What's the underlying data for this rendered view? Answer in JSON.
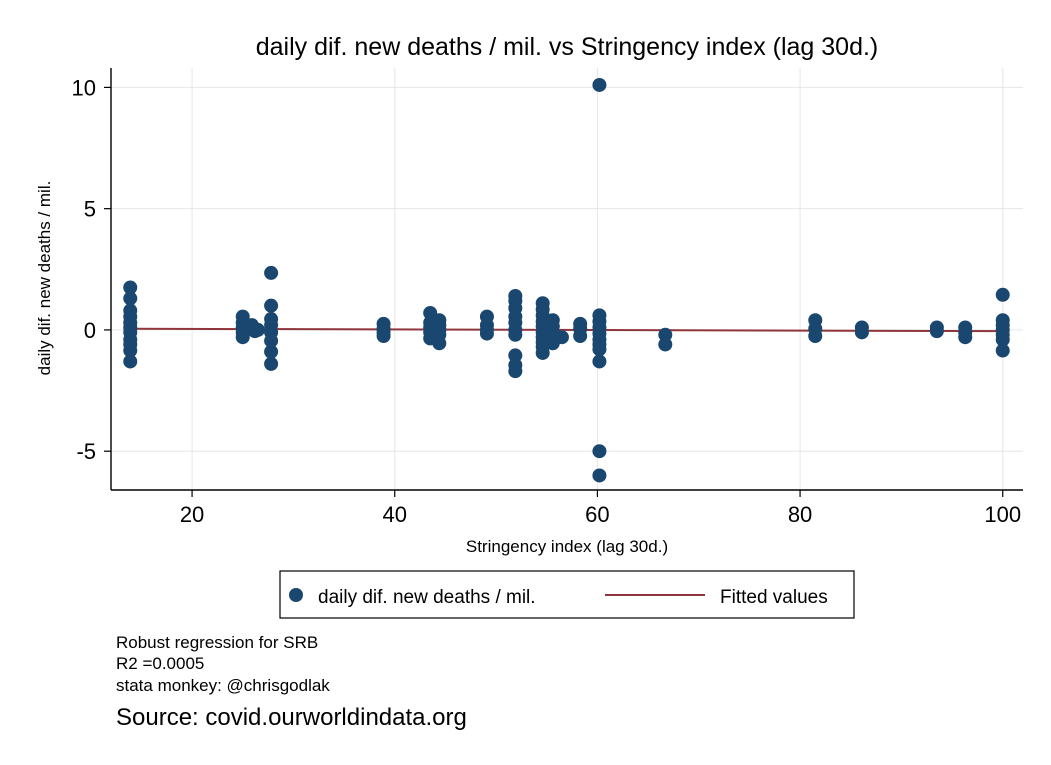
{
  "chart_data": {
    "type": "scatter",
    "title": "daily dif. new deaths / mil. vs Stringency index (lag 30d.)",
    "xlabel": "Stringency index (lag 30d.)",
    "ylabel": "daily dif. new deaths / mil.",
    "xlim": [
      12,
      102
    ],
    "ylim": [
      -6.6,
      10.8
    ],
    "xticks": [
      "20",
      "40",
      "60",
      "80",
      "100"
    ],
    "yticks": [
      "-5",
      "0",
      "5",
      "10"
    ],
    "grid": true,
    "legend_position": "bottom",
    "series": [
      {
        "name": "daily dif. new deaths / mil.",
        "type": "scatter",
        "color": "#1a476f",
        "points": [
          [
            13.9,
            1.75
          ],
          [
            13.9,
            1.3
          ],
          [
            13.9,
            0.8
          ],
          [
            13.9,
            0.55
          ],
          [
            13.9,
            0.3
          ],
          [
            13.9,
            0.1
          ],
          [
            13.9,
            -0.1
          ],
          [
            13.9,
            -0.4
          ],
          [
            13.9,
            -0.6
          ],
          [
            13.9,
            -0.85
          ],
          [
            13.9,
            -1.3
          ],
          [
            25.0,
            0.55
          ],
          [
            25.0,
            0.3
          ],
          [
            25.0,
            0.1
          ],
          [
            25.0,
            -0.1
          ],
          [
            25.0,
            -0.3
          ],
          [
            25.9,
            0.2
          ],
          [
            26.2,
            -0.05
          ],
          [
            26.5,
            0.0
          ],
          [
            27.8,
            2.35
          ],
          [
            27.8,
            1.0
          ],
          [
            27.8,
            0.45
          ],
          [
            27.8,
            0.2
          ],
          [
            27.8,
            -0.1
          ],
          [
            27.8,
            -0.45
          ],
          [
            27.8,
            -0.9
          ],
          [
            27.8,
            -1.4
          ],
          [
            38.9,
            0.25
          ],
          [
            38.9,
            0.05
          ],
          [
            38.9,
            -0.1
          ],
          [
            38.9,
            -0.25
          ],
          [
            43.5,
            0.7
          ],
          [
            43.5,
            0.3
          ],
          [
            43.5,
            0.1
          ],
          [
            43.5,
            -0.1
          ],
          [
            43.5,
            -0.35
          ],
          [
            44.4,
            0.4
          ],
          [
            44.4,
            0.2
          ],
          [
            44.4,
            0.0
          ],
          [
            44.4,
            -0.2
          ],
          [
            44.4,
            -0.55
          ],
          [
            49.1,
            0.55
          ],
          [
            49.1,
            0.2
          ],
          [
            49.1,
            0.0
          ],
          [
            49.1,
            -0.15
          ],
          [
            51.9,
            1.4
          ],
          [
            51.9,
            1.2
          ],
          [
            51.9,
            0.9
          ],
          [
            51.9,
            0.55
          ],
          [
            51.9,
            0.3
          ],
          [
            51.9,
            0.0
          ],
          [
            51.9,
            -0.2
          ],
          [
            51.9,
            -1.05
          ],
          [
            51.9,
            -1.45
          ],
          [
            51.9,
            -1.7
          ],
          [
            54.6,
            1.1
          ],
          [
            54.6,
            0.85
          ],
          [
            54.6,
            0.6
          ],
          [
            54.6,
            0.35
          ],
          [
            54.6,
            0.15
          ],
          [
            54.6,
            -0.1
          ],
          [
            54.6,
            -0.3
          ],
          [
            54.6,
            -0.5
          ],
          [
            54.6,
            -0.7
          ],
          [
            54.6,
            -0.95
          ],
          [
            55.6,
            0.4
          ],
          [
            55.6,
            0.15
          ],
          [
            55.6,
            -0.1
          ],
          [
            55.6,
            -0.3
          ],
          [
            55.6,
            -0.55
          ],
          [
            56.5,
            -0.3
          ],
          [
            58.3,
            0.25
          ],
          [
            58.3,
            0.05
          ],
          [
            58.3,
            -0.25
          ],
          [
            60.2,
            10.1
          ],
          [
            60.2,
            0.6
          ],
          [
            60.2,
            0.35
          ],
          [
            60.2,
            0.1
          ],
          [
            60.2,
            -0.15
          ],
          [
            60.2,
            -0.4
          ],
          [
            60.2,
            -0.6
          ],
          [
            60.2,
            -0.8
          ],
          [
            60.2,
            -1.3
          ],
          [
            60.2,
            -5.0
          ],
          [
            60.2,
            -6.0
          ],
          [
            66.7,
            -0.2
          ],
          [
            66.7,
            -0.6
          ],
          [
            81.5,
            0.4
          ],
          [
            81.5,
            0.05
          ],
          [
            81.5,
            -0.25
          ],
          [
            86.1,
            0.1
          ],
          [
            86.1,
            -0.1
          ],
          [
            93.5,
            0.1
          ],
          [
            93.5,
            -0.05
          ],
          [
            96.3,
            0.1
          ],
          [
            96.3,
            -0.1
          ],
          [
            96.3,
            -0.3
          ],
          [
            100,
            1.45
          ],
          [
            100,
            0.4
          ],
          [
            100,
            0.2
          ],
          [
            100,
            0.0
          ],
          [
            100,
            -0.2
          ],
          [
            100,
            -0.4
          ],
          [
            100,
            -0.85
          ]
        ]
      },
      {
        "name": "Fitted values",
        "type": "line",
        "color": "#90353b",
        "x": [
          13.9,
          100
        ],
        "y": [
          0.05,
          -0.05
        ]
      }
    ]
  },
  "notes": {
    "line1": "Robust regression for SRB",
    "line2": "R2 =0.0005",
    "line3": "stata monkey: @chrisgodlak",
    "source": "Source: covid.ourworldindata.org"
  }
}
